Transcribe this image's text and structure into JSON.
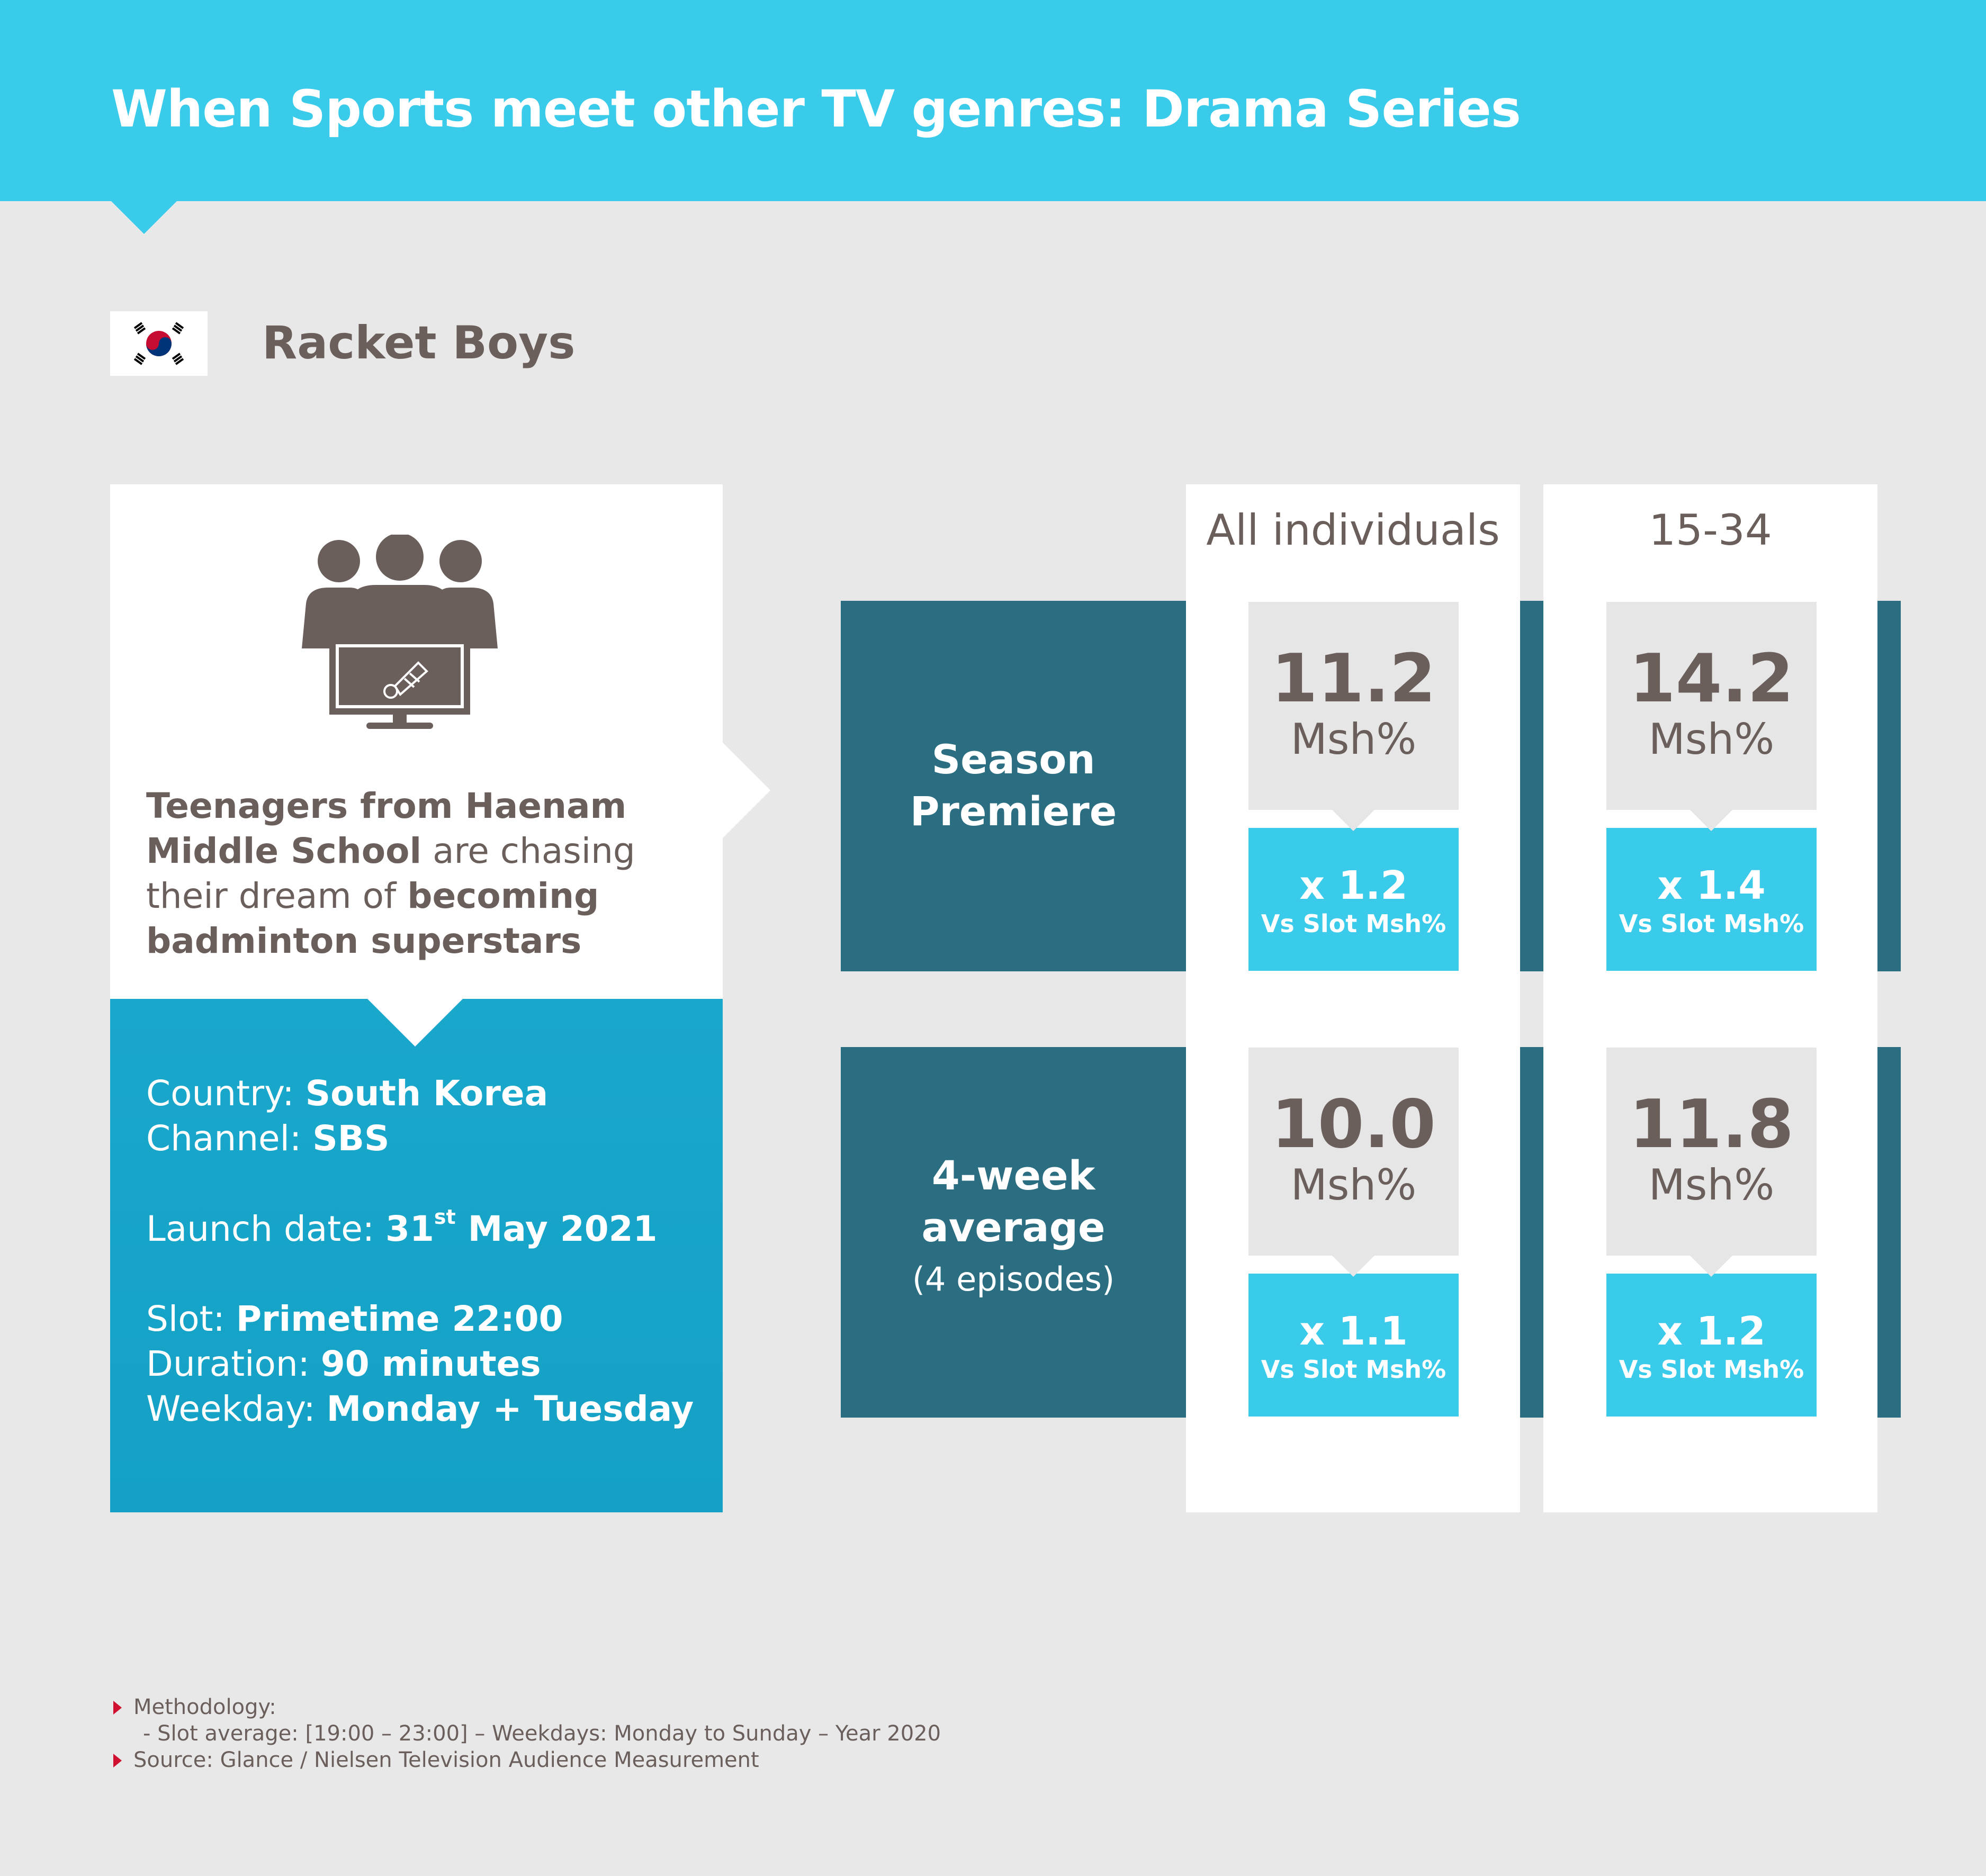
{
  "header": {
    "title": "When Sports meet other TV genres: Drama Series"
  },
  "show": {
    "title": "Racket Boys",
    "flag_icon": "south-korea-flag-icon"
  },
  "description": {
    "icon": "audience-badminton-tv-icon",
    "part1_bold": "Teenagers from Haenam Middle School",
    "part2": " are chasing their dream of ",
    "part3_bold": "becoming badminton superstars"
  },
  "info": {
    "country_label": "Country: ",
    "country_value": "South Korea",
    "channel_label": "Channel: ",
    "channel_value": "SBS",
    "launch_label": "Launch date: ",
    "launch_day": "31",
    "launch_suffix": "st",
    "launch_rest": " May 2021",
    "slot_label": "Slot: ",
    "slot_value": "Primetime 22:00",
    "duration_label": "Duration: ",
    "duration_value": "90 minutes",
    "weekday_label": "Weekday: ",
    "weekday_value": "Monday + Tuesday"
  },
  "table": {
    "columns": [
      "All individuals",
      "15-34"
    ],
    "rows": [
      {
        "label_line1": "Season",
        "label_line2": "Premiere",
        "label_sub": "",
        "cells": [
          {
            "value": "11.2",
            "unit": "Msh%",
            "ratio": "x 1.2",
            "ratio_label": "Vs Slot Msh%"
          },
          {
            "value": "14.2",
            "unit": "Msh%",
            "ratio": "x 1.4",
            "ratio_label": "Vs Slot Msh%"
          }
        ]
      },
      {
        "label_line1": "4-week",
        "label_line2": "average",
        "label_sub": "(4 episodes)",
        "cells": [
          {
            "value": "10.0",
            "unit": "Msh%",
            "ratio": "x 1.1",
            "ratio_label": "Vs Slot Msh%"
          },
          {
            "value": "11.8",
            "unit": "Msh%",
            "ratio": "x 1.2",
            "ratio_label": "Vs Slot Msh%"
          }
        ]
      }
    ]
  },
  "footer": {
    "methodology": "Methodology:",
    "slot_average": "- Slot average: [19:00 – 23:00] – Weekdays: Monday to Sunday – Year 2020",
    "source": "Source: Glance / Nielsen Television Audience Measurement"
  },
  "colors": {
    "accent": "#3acbeb",
    "dark_band": "#2b6e82",
    "info_blue": "#1aa7cc",
    "text": "#6b5f5c",
    "bullet": "#d0102f"
  }
}
